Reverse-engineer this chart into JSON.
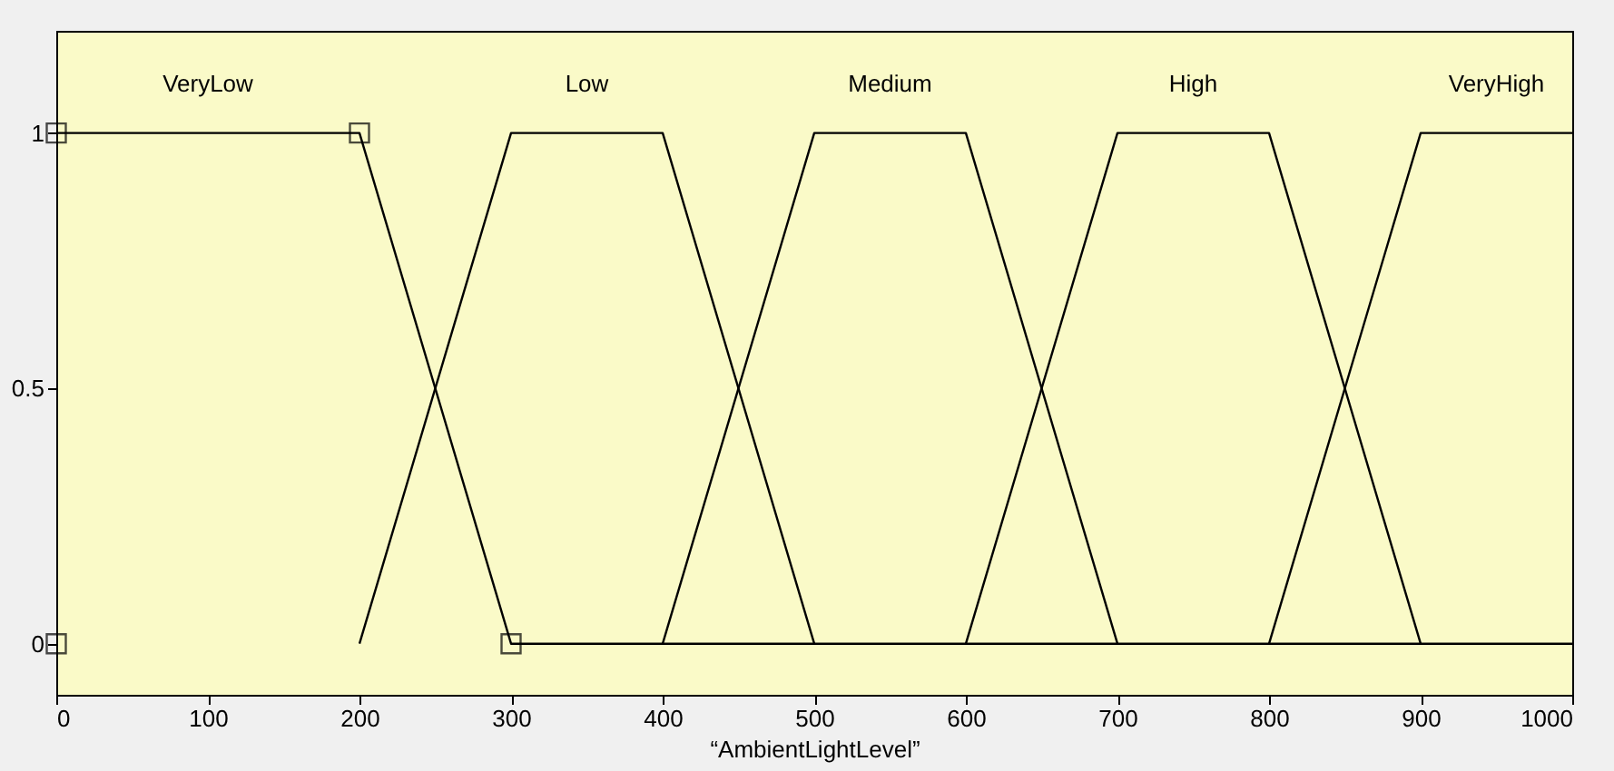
{
  "chart_data": {
    "type": "line",
    "xlabel": "“AmbientLightLevel”",
    "series": [
      {
        "name": "VeryLow",
        "color": "#000000",
        "x": [
          0,
          200,
          300,
          1000
        ],
        "values": [
          1,
          1,
          0,
          0
        ]
      },
      {
        "name": "Low",
        "color": "#000000",
        "x": [
          200,
          300,
          400,
          500
        ],
        "values": [
          0,
          1,
          1,
          0
        ]
      },
      {
        "name": "Medium",
        "color": "#000000",
        "x": [
          400,
          500,
          600,
          700
        ],
        "values": [
          0,
          1,
          1,
          0
        ]
      },
      {
        "name": "High",
        "color": "#000000",
        "x": [
          600,
          700,
          800,
          900
        ],
        "values": [
          0,
          1,
          1,
          0
        ]
      },
      {
        "name": "VeryHigh",
        "color": "#000000",
        "x": [
          800,
          900,
          1000
        ],
        "values": [
          0,
          1,
          1
        ]
      },
      {
        "type": "scatter",
        "marker": "square",
        "color": "#000000",
        "x": [
          0,
          0,
          200,
          300
        ],
        "values": [
          0,
          1,
          1,
          0
        ]
      }
    ],
    "xlim": [
      0,
      1000
    ],
    "xticks": [
      0,
      100,
      200,
      300,
      400,
      500,
      600,
      700,
      800,
      900,
      1000
    ],
    "ylim": [
      -0.1,
      1.2
    ],
    "yticks": [
      0,
      0.5,
      1
    ],
    "grid": false,
    "line_style": "solid"
  }
}
